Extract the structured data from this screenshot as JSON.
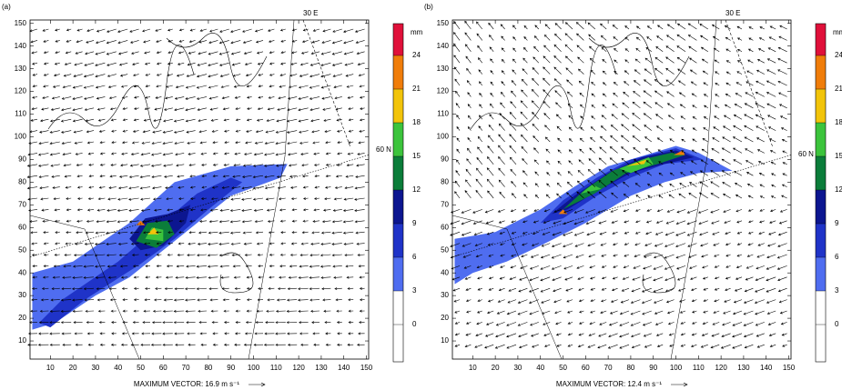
{
  "chart_data": [
    {
      "type": "map",
      "panel_label": "(a)",
      "lon_label": "30 E",
      "lat_label": "60 N",
      "caption": "MAXIMUM VECTOR: 16.9 m s⁻¹",
      "xlim": [
        1,
        151
      ],
      "ylim": [
        2,
        151.5
      ],
      "xticks": [
        10,
        20,
        30,
        40,
        50,
        60,
        70,
        80,
        90,
        100,
        110,
        120,
        130,
        140,
        150
      ],
      "yticks": [
        10,
        20,
        30,
        40,
        50,
        60,
        70,
        80,
        90,
        100,
        110,
        120,
        130,
        140,
        150
      ],
      "colorbar": {
        "unit": "mm",
        "levels": [
          0,
          3,
          6,
          9,
          12,
          15,
          18,
          21,
          24
        ],
        "colors": [
          "#ffffff",
          "#ffffff",
          "#4f6df0",
          "#1f33c8",
          "#0c1690",
          "#0b7d3a",
          "#3cc43c",
          "#f2c40a",
          "#f07d0a",
          "#e0103a",
          "#7a3a20"
        ]
      },
      "precip_areas": [
        {
          "level": 3,
          "points": [
            [
              2,
              15
            ],
            [
              2,
              40
            ],
            [
              20,
              45
            ],
            [
              45,
              62
            ],
            [
              65,
              80
            ],
            [
              90,
              87
            ],
            [
              115,
              88
            ],
            [
              112,
              82
            ],
            [
              90,
              74
            ],
            [
              75,
              62
            ],
            [
              60,
              50
            ],
            [
              45,
              38
            ],
            [
              30,
              30
            ],
            [
              12,
              18
            ]
          ]
        },
        {
          "level": 6,
          "points": [
            [
              5,
              18
            ],
            [
              15,
              28
            ],
            [
              40,
              45
            ],
            [
              55,
              58
            ],
            [
              75,
              75
            ],
            [
              90,
              82
            ],
            [
              95,
              80
            ],
            [
              80,
              68
            ],
            [
              65,
              55
            ],
            [
              50,
              44
            ],
            [
              25,
              28
            ],
            [
              10,
              16
            ]
          ]
        },
        {
          "level": 9,
          "points": [
            [
              45,
              55
            ],
            [
              52,
              64
            ],
            [
              62,
              66
            ],
            [
              72,
              70
            ],
            [
              70,
              62
            ],
            [
              60,
              52
            ],
            [
              50,
              50
            ]
          ]
        },
        {
          "level": 12,
          "points": [
            [
              48,
              54
            ],
            [
              53,
              62
            ],
            [
              62,
              63
            ],
            [
              65,
              57
            ],
            [
              57,
              51
            ]
          ]
        },
        {
          "level": 15,
          "points": [
            [
              52,
              55
            ],
            [
              55,
              60
            ],
            [
              60,
              59
            ],
            [
              60,
              54
            ]
          ]
        },
        {
          "level": 18,
          "points": [
            [
              53,
              57
            ],
            [
              56,
              60
            ],
            [
              58,
              57
            ]
          ]
        },
        {
          "level": 21,
          "points": [
            [
              48,
              61
            ],
            [
              50,
              63
            ],
            [
              52,
              61
            ]
          ]
        }
      ]
    },
    {
      "type": "map",
      "panel_label": "(b)",
      "lon_label": "30 E",
      "lat_label": "60 N",
      "caption": "MAXIMUM VECTOR: 12.4 m s⁻¹",
      "xlim": [
        1,
        151
      ],
      "ylim": [
        2,
        151.5
      ],
      "xticks": [
        10,
        20,
        30,
        40,
        50,
        60,
        70,
        80,
        90,
        100,
        110,
        120,
        130,
        140,
        150
      ],
      "yticks": [
        10,
        20,
        30,
        40,
        50,
        60,
        70,
        80,
        90,
        100,
        110,
        120,
        130,
        140,
        150
      ],
      "colorbar": {
        "unit": "mm",
        "levels": [
          0,
          3,
          6,
          9,
          12,
          15,
          18,
          21,
          24
        ],
        "colors": [
          "#ffffff",
          "#ffffff",
          "#4f6df0",
          "#1f33c8",
          "#0c1690",
          "#0b7d3a",
          "#3cc43c",
          "#f2c40a",
          "#f07d0a",
          "#e0103a",
          "#7a3a20"
        ]
      },
      "precip_areas": [
        {
          "level": 3,
          "points": [
            [
              2,
              35
            ],
            [
              2,
              55
            ],
            [
              20,
              58
            ],
            [
              40,
              68
            ],
            [
              55,
              78
            ],
            [
              70,
              87
            ],
            [
              90,
              93
            ],
            [
              100,
              96
            ],
            [
              110,
              93
            ],
            [
              125,
              85
            ],
            [
              110,
              84
            ],
            [
              95,
              80
            ],
            [
              80,
              74
            ],
            [
              60,
              62
            ],
            [
              40,
              52
            ],
            [
              25,
              45
            ],
            [
              10,
              40
            ]
          ]
        },
        {
          "level": 6,
          "points": [
            [
              40,
              62
            ],
            [
              50,
              72
            ],
            [
              65,
              82
            ],
            [
              80,
              90
            ],
            [
              100,
              95
            ],
            [
              112,
              90
            ],
            [
              95,
              88
            ],
            [
              80,
              82
            ],
            [
              65,
              74
            ],
            [
              50,
              64
            ]
          ]
        },
        {
          "level": 9,
          "points": [
            [
              45,
              66
            ],
            [
              55,
              74
            ],
            [
              70,
              84
            ],
            [
              85,
              91
            ],
            [
              100,
              94
            ],
            [
              108,
              91
            ],
            [
              95,
              88
            ],
            [
              80,
              84
            ],
            [
              65,
              76
            ],
            [
              52,
              68
            ]
          ]
        },
        {
          "level": 12,
          "points": [
            [
              50,
              68
            ],
            [
              60,
              77
            ],
            [
              72,
              85
            ],
            [
              85,
              90
            ],
            [
              98,
              93
            ],
            [
              104,
              92
            ],
            [
              92,
              88
            ],
            [
              78,
              84
            ],
            [
              64,
              75
            ]
          ]
        },
        {
          "level": 15,
          "points": [
            [
              58,
              75
            ],
            [
              63,
              79
            ],
            [
              67,
              77
            ]
          ]
        },
        {
          "level": 15,
          "points": [
            [
              75,
              86
            ],
            [
              88,
              91
            ],
            [
              90,
              88
            ],
            [
              80,
              84
            ]
          ]
        },
        {
          "level": 18,
          "points": [
            [
              78,
              87
            ],
            [
              87,
              90
            ],
            [
              86,
              88
            ]
          ]
        },
        {
          "level": 21,
          "points": [
            [
              48,
              66
            ],
            [
              50,
              68
            ],
            [
              52,
              66
            ]
          ]
        },
        {
          "level": 21,
          "points": [
            [
              99,
              92
            ],
            [
              103,
              94
            ],
            [
              104,
              92
            ]
          ]
        }
      ]
    }
  ]
}
